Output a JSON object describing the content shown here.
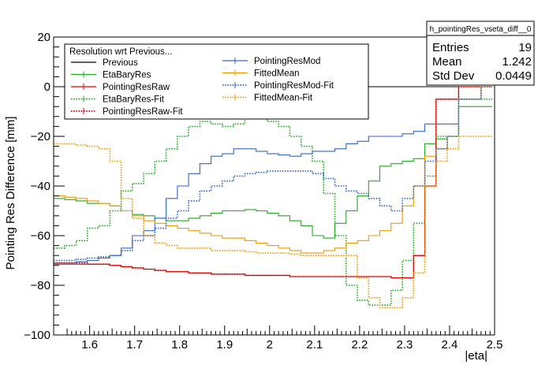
{
  "chart_data": {
    "type": "line",
    "title": "",
    "xlabel": "|eta|",
    "ylabel": "Pointing Res Difference [mm]",
    "xlim": [
      1.52,
      2.5
    ],
    "ylim": [
      -100,
      20
    ],
    "x_ticks": [
      1.6,
      1.7,
      1.8,
      1.9,
      2,
      2.1,
      2.2,
      2.3,
      2.4,
      2.5
    ],
    "x_tick_labels": [
      "1.6",
      "1.7",
      "1.8",
      "1.9",
      "2",
      "2.1",
      "2.2",
      "2.3",
      "2.4",
      "2.5"
    ],
    "y_ticks": [
      -100,
      -80,
      -60,
      -40,
      -20,
      0,
      20
    ],
    "y_tick_labels": [
      "−100",
      "−80",
      "−60",
      "−40",
      "−20",
      "0",
      "20"
    ],
    "bin_edges": [
      1.52,
      1.545,
      1.57,
      1.595,
      1.62,
      1.645,
      1.67,
      1.695,
      1.72,
      1.745,
      1.77,
      1.795,
      1.82,
      1.845,
      1.87,
      1.895,
      1.92,
      1.945,
      1.97,
      1.995,
      2.02,
      2.045,
      2.07,
      2.095,
      2.12,
      2.145,
      2.17,
      2.195,
      2.22,
      2.245,
      2.27,
      2.295,
      2.32,
      2.345,
      2.37,
      2.395,
      2.42,
      2.445,
      2.47,
      2.495
    ],
    "grid": false,
    "legend": {
      "title": "Resolution wrt Previous...",
      "position": "top-left",
      "entries": [
        "Previous",
        "EtaBaryRes",
        "PointingResRaw",
        "EtaBaryRes-Fit",
        "PointingResRaw-Fit",
        "PointingResMod",
        "FittedMean",
        "PointingResMod-Fit",
        "FittedMean-Fit"
      ]
    },
    "stats_box": {
      "title": "h_pointingRes_vseta_diff__0",
      "rows": [
        {
          "label": "Entries",
          "value": "19"
        },
        {
          "label": "Mean",
          "value": "1.242"
        },
        {
          "label": "Std Dev",
          "value": "0.0449"
        }
      ]
    },
    "series": [
      {
        "name": "Previous",
        "color": "#000000",
        "style": "solid",
        "values": [
          0,
          0,
          0,
          0,
          0,
          0,
          0,
          0,
          0,
          0,
          0,
          0,
          0,
          0,
          0,
          0,
          0,
          0,
          0,
          0,
          0,
          0,
          0,
          0,
          0,
          0,
          0,
          0,
          0,
          0,
          0,
          0,
          0,
          0,
          0,
          0,
          0,
          0,
          0
        ]
      },
      {
        "name": "EtaBaryRes",
        "color": "#22aa22",
        "style": "solid",
        "values": [
          -45,
          -45.5,
          -46,
          -47,
          -47,
          -48,
          -50,
          -51.5,
          -52,
          -53,
          -54,
          -54,
          -53,
          -52,
          -51,
          -50,
          -50,
          -49.5,
          -50,
          -51,
          -52,
          -54,
          -56,
          -60,
          -61,
          -55,
          -50,
          -44,
          -38,
          -32,
          -31,
          -30,
          -29,
          -23,
          -21,
          -20,
          -8,
          -8,
          -8
        ]
      },
      {
        "name": "PointingResRaw",
        "color": "#dd0000",
        "style": "solid",
        "values": [
          -71.5,
          -71.5,
          -71.5,
          -71.5,
          -71.5,
          -72,
          -72.5,
          -73,
          -73.5,
          -74,
          -74.5,
          -74.5,
          -75,
          -75,
          -75.5,
          -75.5,
          -75.5,
          -76,
          -76,
          -76,
          -76,
          -76.5,
          -76.5,
          -76.5,
          -76.5,
          -76.5,
          -76.5,
          -76.5,
          -76.5,
          -76.5,
          -77,
          -77,
          -68,
          -40,
          -5,
          -5,
          0,
          0,
          0
        ]
      },
      {
        "name": "EtaBaryRes-Fit",
        "color": "#22aa22",
        "style": "dotted",
        "values": [
          -65,
          -64,
          -62,
          -57,
          -56,
          -50,
          -42,
          -39,
          -35,
          -30,
          -25,
          -20,
          -16,
          -14,
          -15,
          -16,
          -15,
          -12,
          -12,
          -14,
          -16,
          -20,
          -24,
          -30,
          -43,
          -60,
          -80,
          -86,
          -88,
          -88,
          -82,
          -70,
          -55,
          -36,
          -20,
          -20,
          -5,
          -5,
          -5
        ]
      },
      {
        "name": "PointingResRaw-Fit",
        "color": "#dd0000",
        "style": "dotted",
        "values": [
          -71,
          -71,
          -71,
          -71.5,
          -71.5,
          -72,
          -72.5,
          -73,
          -73.5,
          -74,
          -74.5,
          -74.5,
          -75,
          -75,
          -75.5,
          -75.5,
          -75.5,
          -76,
          -76,
          -76,
          -76,
          -76.5,
          -76.5,
          -76.5,
          -76.5,
          -76.5,
          -76.5,
          -76.5,
          -76.5,
          -76.5,
          -77,
          -77,
          -68,
          -40,
          -5,
          -5,
          0,
          0,
          0
        ]
      },
      {
        "name": "PointingResMod",
        "color": "#3366cc",
        "style": "solid",
        "values": [
          -71,
          -71,
          -70.5,
          -70,
          -69,
          -68,
          -65,
          -60,
          -58,
          -53,
          -45,
          -40,
          -35,
          -31,
          -28,
          -27,
          -25,
          -25,
          -26,
          -27,
          -27.5,
          -28,
          -27,
          -26,
          -26,
          -25,
          -23,
          -22,
          -20,
          -20,
          -20,
          -19,
          -18,
          -15,
          -15,
          -15,
          -5,
          -5,
          0
        ]
      },
      {
        "name": "FittedMean",
        "color": "#ee9900",
        "style": "solid",
        "values": [
          -44,
          -44.5,
          -45,
          -46,
          -47,
          -48,
          -50,
          -52,
          -54,
          -55,
          -56,
          -57,
          -58,
          -59,
          -60,
          -61,
          -61,
          -62,
          -63,
          -64,
          -65,
          -66,
          -67,
          -67,
          -66,
          -65,
          -63,
          -62,
          -60,
          -58,
          -55,
          -48,
          -40,
          -28,
          -25,
          -20,
          -5,
          -5,
          0
        ]
      },
      {
        "name": "PointingResMod-Fit",
        "color": "#3366cc",
        "style": "dotted",
        "values": [
          -70,
          -70,
          -69.5,
          -69,
          -68.5,
          -68,
          -66,
          -62,
          -60,
          -57,
          -53,
          -50,
          -46,
          -42,
          -40,
          -38,
          -36,
          -35,
          -34.5,
          -34,
          -34,
          -34,
          -34,
          -35,
          -37,
          -40,
          -42,
          -43,
          -45,
          -48,
          -50,
          -45,
          -40,
          -30,
          -25,
          -20,
          -5,
          -5,
          0
        ]
      },
      {
        "name": "FittedMean-Fit",
        "color": "#ee9900",
        "style": "dotted",
        "values": [
          -23,
          -23,
          -23.5,
          -24,
          -25,
          -30,
          -45,
          -53,
          -60,
          -63,
          -64,
          -65,
          -65,
          -65,
          -66,
          -66,
          -66,
          -66.5,
          -67,
          -67,
          -67,
          -67.5,
          -68,
          -68,
          -68,
          -68,
          -68,
          -77,
          -85,
          -89,
          -89,
          -85,
          -75,
          -40,
          -30,
          -25,
          -20,
          -20,
          -20
        ]
      }
    ]
  }
}
